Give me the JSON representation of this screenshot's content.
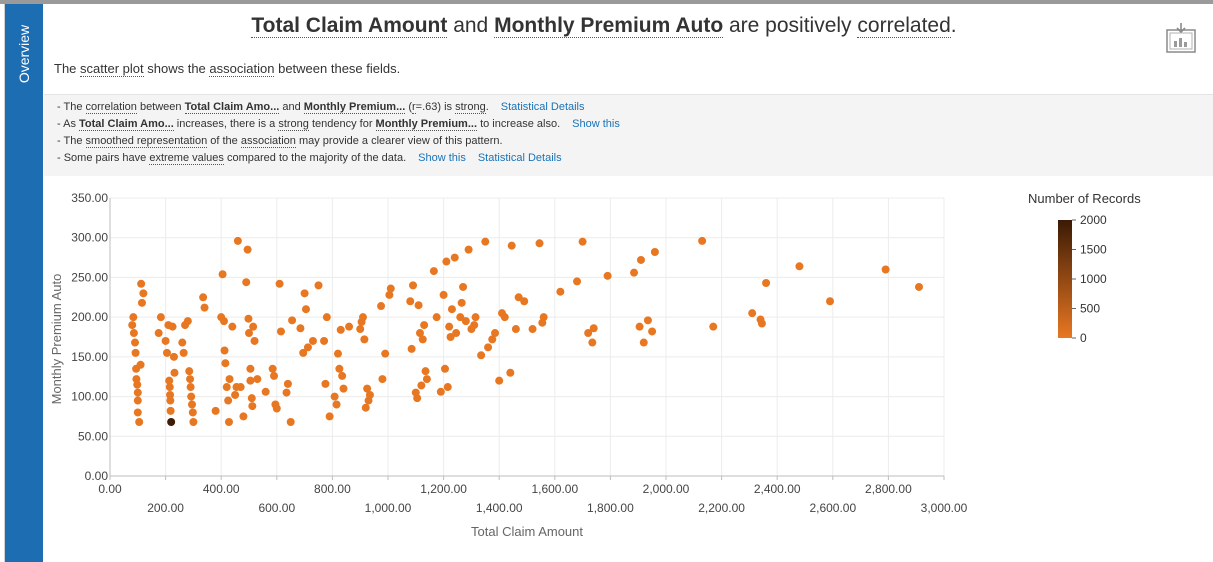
{
  "sidebar": {
    "tab_label": "Overview"
  },
  "headline": {
    "field_x": "Total Claim Amount",
    "and": "and",
    "field_y": "Monthly Premium Auto",
    "are_positively": "are positively",
    "correlated": "correlated",
    "period": "."
  },
  "subline": {
    "the": "The",
    "scatter_plot": "scatter plot",
    "shows_the": "shows the",
    "association": "association",
    "between": "between these fields."
  },
  "insights": [
    {
      "parts": [
        "- The ",
        "correlation",
        " between ",
        "Total Claim Amo...",
        " and ",
        "Monthly Premium...",
        " (",
        "r",
        "=.63) is ",
        "strong",
        "."
      ],
      "links": [
        "Statistical Details"
      ]
    },
    {
      "parts": [
        "- As ",
        "Total Claim Amo...",
        " increases, there is a ",
        "strong",
        " tendency for ",
        "Monthly Premium...",
        " to increase also."
      ],
      "links": [
        "Show this"
      ]
    },
    {
      "parts": [
        "- The ",
        "smoothed representation",
        " of the ",
        "association",
        " may provide a clearer view of this pattern."
      ],
      "links": []
    },
    {
      "parts": [
        "- Some pairs have ",
        "extreme values",
        " compared to the majority of the data."
      ],
      "links": [
        "Show this",
        "Statistical Details"
      ]
    }
  ],
  "toolbar": {
    "export_icon": "export-report-icon"
  },
  "chart_data": {
    "type": "scatter",
    "xlabel": "Total Claim Amount",
    "ylabel": "Monthly Premium Auto",
    "xlim": [
      0,
      3000
    ],
    "ylim": [
      0,
      350
    ],
    "x_ticks": [
      "0.00",
      "200.00",
      "400.00",
      "600.00",
      "800.00",
      "1,000.00",
      "1,200.00",
      "1,400.00",
      "1,600.00",
      "1,800.00",
      "2,000.00",
      "2,200.00",
      "2,400.00",
      "2,600.00",
      "2,800.00",
      "3,000.00"
    ],
    "y_ticks": [
      "0.00",
      "50.00",
      "100.00",
      "150.00",
      "200.00",
      "250.00",
      "300.00",
      "350.00"
    ],
    "grid": true,
    "legend": {
      "title": "Number of Records",
      "labels": [
        "2000",
        "1500",
        "1000",
        "500",
        "0"
      ],
      "min": 0,
      "max": 2000,
      "color_low": "#e87722",
      "color_high": "#3b1a05",
      "placement": "right"
    },
    "points": [
      [
        80,
        190
      ],
      [
        84,
        200
      ],
      [
        86,
        180
      ],
      [
        90,
        168
      ],
      [
        92,
        155
      ],
      [
        94,
        135
      ],
      [
        95,
        122
      ],
      [
        98,
        115
      ],
      [
        100,
        105
      ],
      [
        100,
        95
      ],
      [
        100,
        80
      ],
      [
        105,
        68
      ],
      [
        110,
        140
      ],
      [
        112,
        242
      ],
      [
        115,
        218
      ],
      [
        120,
        230
      ],
      [
        175,
        180
      ],
      [
        183,
        200
      ],
      [
        200,
        170
      ],
      [
        205,
        155
      ],
      [
        210,
        190
      ],
      [
        213,
        120
      ],
      [
        215,
        112
      ],
      [
        216,
        102
      ],
      [
        217,
        95
      ],
      [
        218,
        82
      ],
      [
        220,
        68
      ],
      [
        225,
        188
      ],
      [
        230,
        150
      ],
      [
        232,
        130
      ],
      [
        260,
        168
      ],
      [
        265,
        155
      ],
      [
        270,
        190
      ],
      [
        280,
        195
      ],
      [
        285,
        132
      ],
      [
        288,
        122
      ],
      [
        290,
        112
      ],
      [
        292,
        100
      ],
      [
        295,
        90
      ],
      [
        298,
        80
      ],
      [
        300,
        68
      ],
      [
        335,
        225
      ],
      [
        340,
        212
      ],
      [
        380,
        82
      ],
      [
        400,
        200
      ],
      [
        405,
        254
      ],
      [
        410,
        195
      ],
      [
        412,
        158
      ],
      [
        415,
        142
      ],
      [
        420,
        112
      ],
      [
        425,
        95
      ],
      [
        428,
        68
      ],
      [
        430,
        122
      ],
      [
        440,
        188
      ],
      [
        450,
        102
      ],
      [
        455,
        112
      ],
      [
        460,
        296
      ],
      [
        470,
        112
      ],
      [
        480,
        75
      ],
      [
        490,
        244
      ],
      [
        495,
        285
      ],
      [
        498,
        198
      ],
      [
        500,
        180
      ],
      [
        505,
        135
      ],
      [
        505,
        120
      ],
      [
        510,
        98
      ],
      [
        512,
        88
      ],
      [
        515,
        188
      ],
      [
        520,
        170
      ],
      [
        530,
        122
      ],
      [
        560,
        106
      ],
      [
        585,
        135
      ],
      [
        590,
        126
      ],
      [
        595,
        90
      ],
      [
        600,
        85
      ],
      [
        610,
        242
      ],
      [
        615,
        182
      ],
      [
        635,
        105
      ],
      [
        640,
        116
      ],
      [
        650,
        68
      ],
      [
        655,
        196
      ],
      [
        685,
        186
      ],
      [
        695,
        155
      ],
      [
        700,
        230
      ],
      [
        705,
        210
      ],
      [
        712,
        162
      ],
      [
        730,
        170
      ],
      [
        750,
        240
      ],
      [
        770,
        170
      ],
      [
        775,
        116
      ],
      [
        780,
        200
      ],
      [
        790,
        75
      ],
      [
        808,
        100
      ],
      [
        815,
        90
      ],
      [
        820,
        154
      ],
      [
        825,
        135
      ],
      [
        830,
        184
      ],
      [
        835,
        126
      ],
      [
        840,
        110
      ],
      [
        860,
        188
      ],
      [
        900,
        185
      ],
      [
        905,
        194
      ],
      [
        910,
        200
      ],
      [
        915,
        172
      ],
      [
        920,
        86
      ],
      [
        925,
        110
      ],
      [
        930,
        95
      ],
      [
        935,
        102
      ],
      [
        975,
        214
      ],
      [
        980,
        122
      ],
      [
        990,
        154
      ],
      [
        1005,
        228
      ],
      [
        1010,
        236
      ],
      [
        1080,
        220
      ],
      [
        1085,
        160
      ],
      [
        1090,
        240
      ],
      [
        1100,
        105
      ],
      [
        1105,
        98
      ],
      [
        1110,
        215
      ],
      [
        1115,
        180
      ],
      [
        1120,
        114
      ],
      [
        1125,
        172
      ],
      [
        1130,
        190
      ],
      [
        1135,
        132
      ],
      [
        1140,
        122
      ],
      [
        1165,
        258
      ],
      [
        1175,
        200
      ],
      [
        1190,
        106
      ],
      [
        1200,
        228
      ],
      [
        1205,
        135
      ],
      [
        1210,
        270
      ],
      [
        1215,
        112
      ],
      [
        1220,
        188
      ],
      [
        1225,
        175
      ],
      [
        1230,
        210
      ],
      [
        1240,
        275
      ],
      [
        1245,
        180
      ],
      [
        1260,
        200
      ],
      [
        1265,
        218
      ],
      [
        1270,
        238
      ],
      [
        1280,
        195
      ],
      [
        1290,
        285
      ],
      [
        1300,
        185
      ],
      [
        1310,
        190
      ],
      [
        1315,
        200
      ],
      [
        1335,
        152
      ],
      [
        1350,
        295
      ],
      [
        1360,
        162
      ],
      [
        1375,
        172
      ],
      [
        1385,
        180
      ],
      [
        1400,
        120
      ],
      [
        1410,
        205
      ],
      [
        1420,
        200
      ],
      [
        1440,
        130
      ],
      [
        1445,
        290
      ],
      [
        1460,
        185
      ],
      [
        1470,
        225
      ],
      [
        1490,
        220
      ],
      [
        1520,
        185
      ],
      [
        1545,
        293
      ],
      [
        1555,
        193
      ],
      [
        1560,
        200
      ],
      [
        1620,
        232
      ],
      [
        1680,
        245
      ],
      [
        1700,
        295
      ],
      [
        1720,
        180
      ],
      [
        1735,
        168
      ],
      [
        1740,
        186
      ],
      [
        1790,
        252
      ],
      [
        1885,
        256
      ],
      [
        1905,
        188
      ],
      [
        1910,
        272
      ],
      [
        1920,
        168
      ],
      [
        1935,
        196
      ],
      [
        1950,
        182
      ],
      [
        1960,
        282
      ],
      [
        2130,
        296
      ],
      [
        2170,
        188
      ],
      [
        2310,
        205
      ],
      [
        2340,
        197
      ],
      [
        2345,
        192
      ],
      [
        2360,
        243
      ],
      [
        2480,
        264
      ],
      [
        2590,
        220
      ],
      [
        2790,
        260
      ],
      [
        2910,
        238
      ]
    ],
    "point_records": [
      [
        220,
        68,
        1950
      ]
    ]
  }
}
